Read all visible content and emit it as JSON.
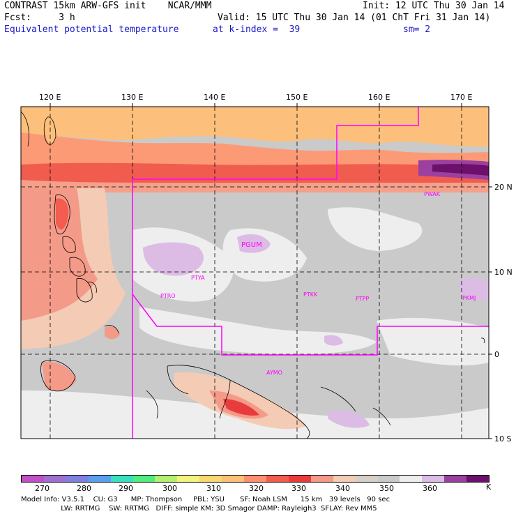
{
  "header": {
    "line1_left": "CONTRAST 15km ARW-GFS init    NCAR/MMM",
    "line1_right": "Init: 12 UTC Thu 30 Jan 14",
    "line2_left": "Fcst:     3 h",
    "line2_right": "Valid: 15 UTC Thu 30 Jan 14 (01 ChT Fri 31 Jan 14)",
    "line3_left": "Equivalent potential temperature",
    "line3_mid": "at k-index =  39",
    "line3_right": "sm= 2"
  },
  "map": {
    "lon_labels": [
      "120 E",
      "130 E",
      "140 E",
      "150 E",
      "160 E",
      "170 E"
    ],
    "lat_labels": [
      "20 N",
      "10 N",
      "0",
      "10 S"
    ],
    "stations": [
      "PWAK",
      "PGUM",
      "PTYA",
      "PTRO",
      "PTKK",
      "PTPP",
      "PKMJ",
      "AYMO"
    ]
  },
  "colorbar": {
    "labels": [
      "270",
      "280",
      "290",
      "300",
      "310",
      "320",
      "330",
      "340",
      "350",
      "360"
    ],
    "unit": "K",
    "colors": [
      "#c050c8",
      "#a070d0",
      "#8080e0",
      "#5aa0ec",
      "#38e0c0",
      "#50ec80",
      "#b4f070",
      "#f4f47c",
      "#f8d870",
      "#fcc078",
      "#fc9070",
      "#f45c50",
      "#e83c3c",
      "#f49a88",
      "#f4cbb4",
      "#d8d0c8",
      "#cacaca",
      "#eeeeee",
      "#dcbce4",
      "#9c40a0",
      "#6c106c"
    ]
  },
  "footer": {
    "line1": "Model Info: V3.5.1    CU: G3      MP: Thompson     PBL: YSU       SF: Noah LSM      15 km   39 levels   90 sec",
    "line2": "                  LW: RRTMG    SW: RRTMG   DIFF: simple KM: 3D Smagor DAMP: Rayleigh3  SFLAY: Rev MM5"
  }
}
